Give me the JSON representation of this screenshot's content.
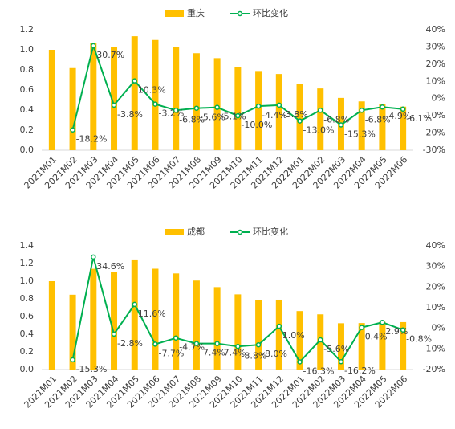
{
  "chart_data": [
    {
      "type": "bar_line",
      "categories": [
        "2021M01",
        "2021M02",
        "2021M03",
        "2021M04",
        "2021M05",
        "2021M06",
        "2021M07",
        "2021M08",
        "2021M09",
        "2021M10",
        "2021M11",
        "2021M12",
        "2022M01",
        "2022M02",
        "2022M03",
        "2022M04",
        "2022M05",
        "2022M06"
      ],
      "series": [
        {
          "name": "重庆",
          "type": "bar",
          "color": "#FFC000",
          "values": [
            1.0,
            0.818,
            1.069,
            1.029,
            1.135,
            1.098,
            1.024,
            0.966,
            0.917,
            0.826,
            0.789,
            0.759,
            0.66,
            0.615,
            0.521,
            0.486,
            0.462,
            0.434
          ]
        },
        {
          "name": "环比变化",
          "type": "line",
          "axis": "y2",
          "color": "#00B050",
          "values": [
            null,
            -18.2,
            30.7,
            -3.8,
            10.3,
            -3.2,
            -6.8,
            -5.6,
            -5.1,
            -10.0,
            -4.4,
            -3.8,
            -13.0,
            -6.8,
            -15.3,
            -6.8,
            -4.9,
            -6.1
          ],
          "value_labels": [
            null,
            "-18.2%",
            "30.7%",
            "-3.8%",
            "10.3%",
            "-3.2%",
            "-6.8%",
            "-5.6%",
            "-5.1%",
            "-10.0%",
            "-4.4%",
            "-3.8%",
            "-13.0%",
            "-6.8%",
            "-15.3%",
            "-6.8%",
            "-4.9%",
            "-6.1%"
          ]
        }
      ],
      "ylim": [
        0,
        1.2
      ],
      "yticks": [
        {
          "value": 0,
          "label": "0.0"
        },
        0.2,
        0.4,
        0.6,
        0.8,
        {
          "value": 1,
          "label": "1.0"
        },
        1.2
      ],
      "y2lim": [
        -30,
        40
      ],
      "y2ticks": [
        {
          "value": -30,
          "label": "-30%"
        },
        {
          "value": -20,
          "label": "-20%"
        },
        {
          "value": -10,
          "label": "-10%"
        },
        {
          "value": 0,
          "label": "0%"
        },
        {
          "value": 10,
          "label": "10%"
        },
        {
          "value": 20,
          "label": "20%"
        },
        {
          "value": 30,
          "label": "30%"
        },
        {
          "value": 40,
          "label": "40%"
        }
      ],
      "legend": "top"
    },
    {
      "type": "bar_line",
      "categories": [
        "2021M01",
        "2021M02",
        "2021M03",
        "2021M04",
        "2021M05",
        "2021M06",
        "2021M07",
        "2021M08",
        "2021M09",
        "2021M10",
        "2021M11",
        "2021M12",
        "2022M01",
        "2022M02",
        "2022M03",
        "2022M04",
        "2022M05",
        "2022M06"
      ],
      "series": [
        {
          "name": "成都",
          "type": "bar",
          "color": "#FFC000",
          "values": [
            1.0,
            0.847,
            1.14,
            1.108,
            1.237,
            1.141,
            1.088,
            1.007,
            0.933,
            0.851,
            0.783,
            0.791,
            0.662,
            0.625,
            0.524,
            0.526,
            0.541,
            0.537
          ]
        },
        {
          "name": "环比变化",
          "type": "line",
          "axis": "y2",
          "color": "#00B050",
          "values": [
            null,
            -15.3,
            34.6,
            -2.8,
            11.6,
            -7.7,
            -4.7,
            -7.4,
            -7.4,
            -8.8,
            -8.0,
            1.0,
            -16.3,
            -5.6,
            -16.2,
            0.4,
            2.9,
            -0.8
          ],
          "value_labels": [
            null,
            "-15.3%",
            "34.6%",
            "-2.8%",
            "11.6%",
            "-7.7%",
            "-4.7%",
            "-7.4%",
            "-7.4%",
            "-8.8%",
            "-8.0%",
            "1.0%",
            "-16.3%",
            "-5.6%",
            "-16.2%",
            "0.4%",
            "2.9%",
            "-0.8%"
          ]
        }
      ],
      "ylim": [
        0,
        1.4
      ],
      "yticks": [
        {
          "value": 0,
          "label": "0.0"
        },
        0.2,
        0.4,
        0.6,
        0.8,
        {
          "value": 1,
          "label": "1.0"
        },
        1.2,
        1.4
      ],
      "y2lim": [
        -20,
        40
      ],
      "y2ticks": [
        {
          "value": -20,
          "label": "-20%"
        },
        {
          "value": -10,
          "label": "-10%"
        },
        {
          "value": 0,
          "label": "0%"
        },
        {
          "value": 10,
          "label": "10%"
        },
        {
          "value": 20,
          "label": "20%"
        },
        {
          "value": 30,
          "label": "30%"
        },
        {
          "value": 40,
          "label": "40%"
        }
      ],
      "legend": "top"
    }
  ]
}
